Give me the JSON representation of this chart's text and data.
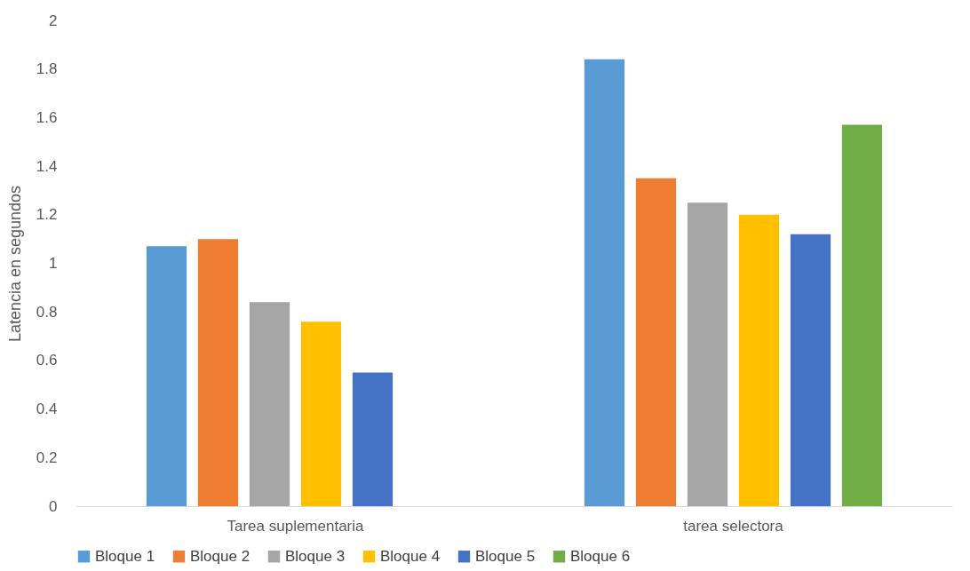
{
  "chart_data": {
    "type": "bar",
    "ylabel": "Latencia en segundos",
    "categories": [
      "Tarea suplementaria",
      "tarea selectora"
    ],
    "series": [
      {
        "name": "Bloque 1",
        "color": "#5b9bd5",
        "values": [
          1.07,
          1.84
        ]
      },
      {
        "name": "Bloque 2",
        "color": "#ed7d31",
        "values": [
          1.1,
          1.35
        ]
      },
      {
        "name": "Bloque 3",
        "color": "#a5a5a5",
        "values": [
          0.84,
          1.25
        ]
      },
      {
        "name": "Bloque 4",
        "color": "#ffc000",
        "values": [
          0.76,
          1.2
        ]
      },
      {
        "name": "Bloque 5",
        "color": "#4472c4",
        "values": [
          0.55,
          1.12
        ]
      },
      {
        "name": "Bloque 6",
        "color": "#70ad47",
        "values": [
          null,
          1.57
        ]
      }
    ],
    "ylim": [
      0,
      2
    ],
    "yticks": [
      0,
      0.2,
      0.4,
      0.6,
      0.8,
      1,
      1.2,
      1.4,
      1.6,
      1.8,
      2
    ],
    "grid": false,
    "legend": "bottom"
  }
}
